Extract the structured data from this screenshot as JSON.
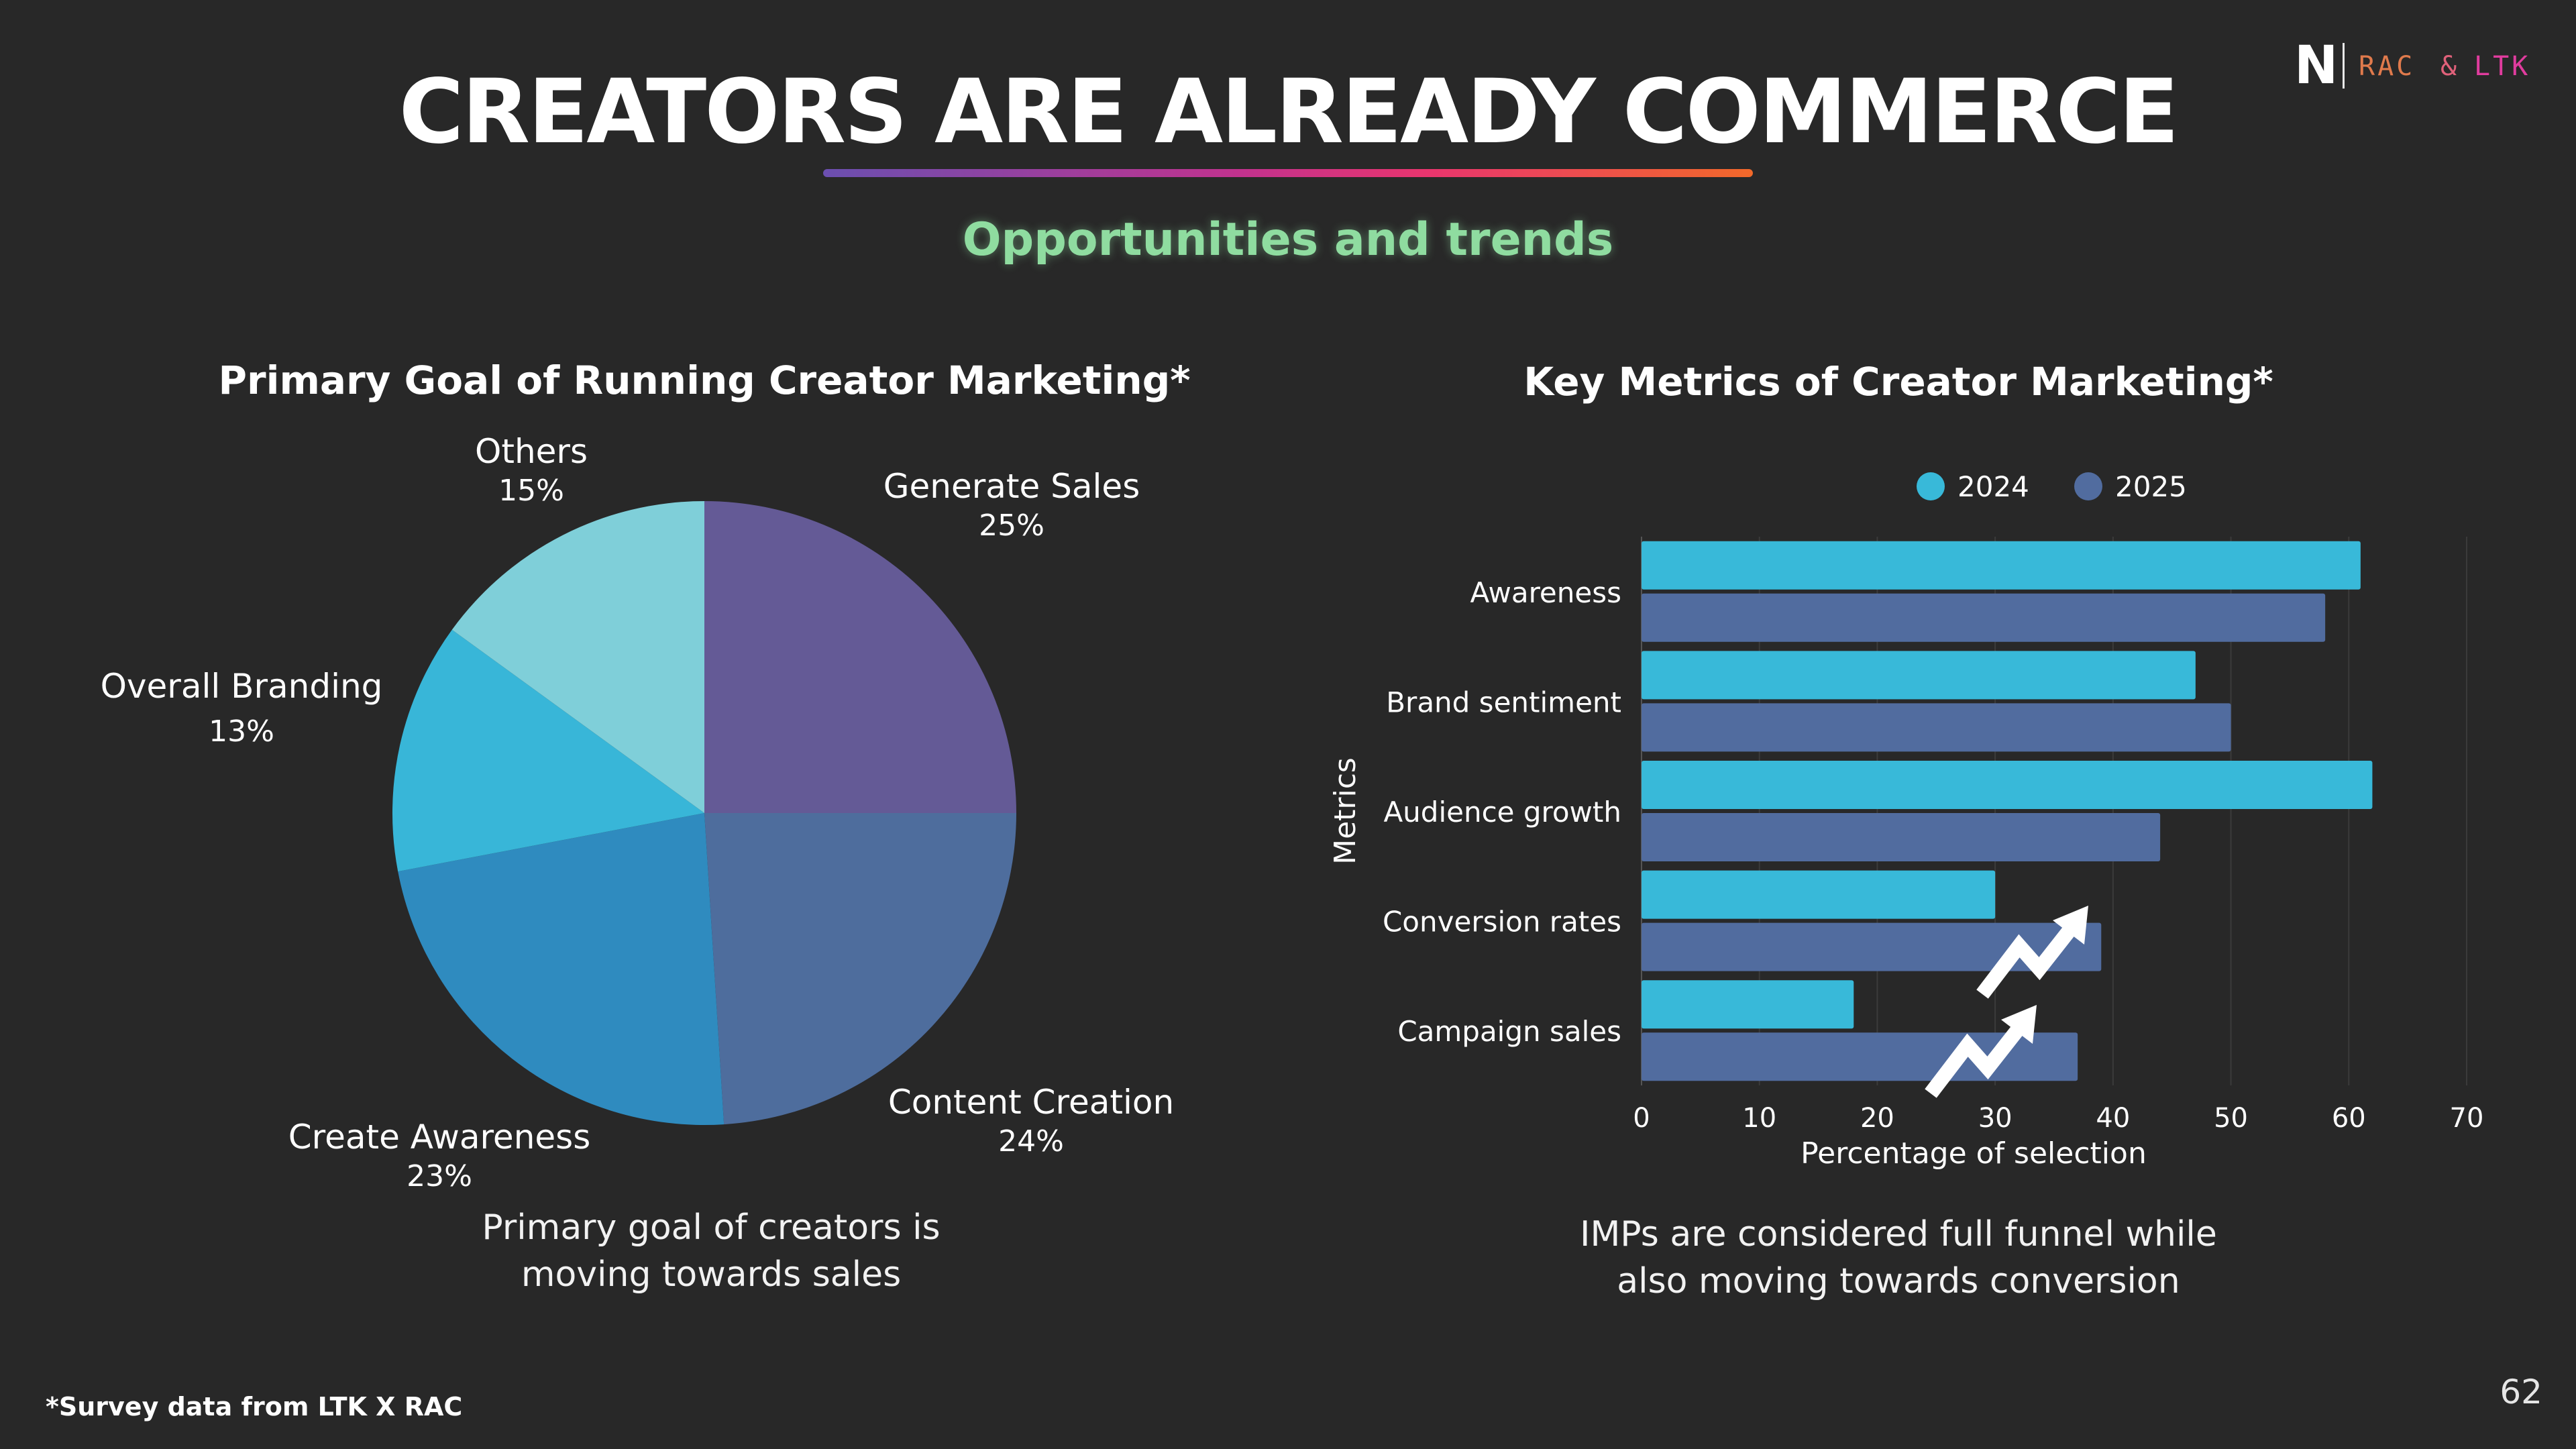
{
  "slide": {
    "title": "CREATORS ARE ALREADY COMMERCE",
    "subtitle": "Opportunities and trends",
    "logo": {
      "mark": "N",
      "partner_1": "RAC",
      "amp": "&",
      "partner_2": "LTK"
    },
    "footnote": "*Survey data from LTK X RAC",
    "page_number": "62"
  },
  "pie": {
    "caption_line1": "Primary goal of creators is",
    "caption_line2": "moving towards sales"
  },
  "bar": {
    "caption_line1": "IMPs are considered full funnel while",
    "caption_line2": "also moving towards conversion",
    "trend_icon": "trend-up-arrow-icon"
  },
  "chart_data": [
    {
      "type": "pie",
      "title": "Primary Goal of Running Creator Marketing*",
      "slices": [
        {
          "label": "Generate Sales",
          "value": 25,
          "value_label": "25%",
          "color": "#645a96"
        },
        {
          "label": "Content Creation",
          "value": 24,
          "value_label": "24%",
          "color": "#4e6d9d"
        },
        {
          "label": "Create Awareness",
          "value": 23,
          "value_label": "23%",
          "color": "#2f8bbf"
        },
        {
          "label": "Overall Branding",
          "value": 13,
          "value_label": "13%",
          "color": "#38b6d8"
        },
        {
          "label": "Others",
          "value": 15,
          "value_label": "15%",
          "color": "#7fcfd9"
        }
      ]
    },
    {
      "type": "bar",
      "orientation": "horizontal",
      "title": "Key Metrics of Creator Marketing*",
      "categories": [
        "Awareness",
        "Brand sentiment",
        "Audience growth",
        "Conversion rates",
        "Campaign sales"
      ],
      "series": [
        {
          "name": "2024",
          "values": [
            61,
            47,
            62,
            30,
            18
          ],
          "color": "#38b9d9"
        },
        {
          "name": "2025",
          "values": [
            58,
            50,
            44,
            39,
            37
          ],
          "color": "#516c9f"
        }
      ],
      "xlabel": "Percentage of selection",
      "ylabel": "Metrics",
      "xlim": [
        0,
        70
      ],
      "xticks": [
        "0",
        "10",
        "20",
        "30",
        "40",
        "50",
        "60",
        "70"
      ],
      "legend_position": "top",
      "grid": "vertical"
    }
  ]
}
